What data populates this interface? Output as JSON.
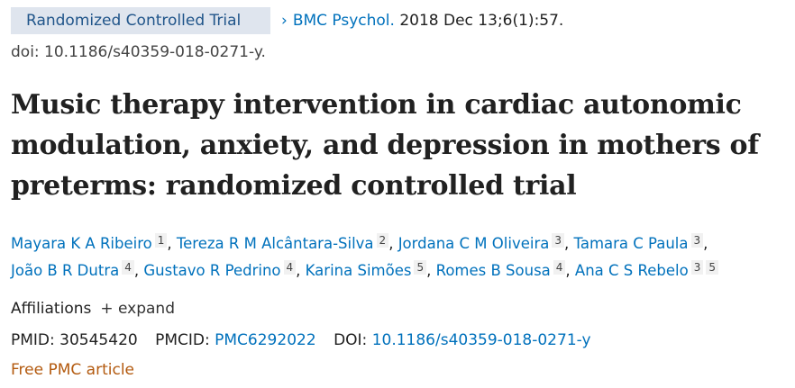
{
  "article_type": "Randomized Controlled Trial",
  "citation": {
    "journal": "BMC Psychol.",
    "date": " 2018 Dec 13;6(1):57.",
    "doi_line": "doi: 10.1186/s40359-018-0271-y."
  },
  "title": "Music therapy intervention in cardiac autonomic modulation, anxiety, and depression in mothers of preterms: randomized controlled trial",
  "authors": [
    {
      "name": "Mayara K A Ribeiro",
      "affils": [
        "1"
      ]
    },
    {
      "name": "Tereza R M Alcântara-Silva",
      "affils": [
        "2"
      ]
    },
    {
      "name": "Jordana C M Oliveira",
      "affils": [
        "3"
      ]
    },
    {
      "name": "Tamara C Paula",
      "affils": [
        "3"
      ]
    },
    {
      "name": "João B R Dutra",
      "affils": [
        "4"
      ]
    },
    {
      "name": "Gustavo R Pedrino",
      "affils": [
        "4"
      ]
    },
    {
      "name": "Karina Simões",
      "affils": [
        "5"
      ]
    },
    {
      "name": "Romes B Sousa",
      "affils": [
        "4"
      ]
    },
    {
      "name": "Ana C S Rebelo",
      "affils": [
        "3",
        "5"
      ]
    }
  ],
  "affiliations": {
    "label": "Affiliations",
    "expand": "+ expand"
  },
  "ids": {
    "pmid_label": "PMID:",
    "pmid": "30545420",
    "pmcid_label": "PMCID:",
    "pmcid": "PMC6292022",
    "doi_label": "DOI:",
    "doi": "10.1186/s40359-018-0271-y"
  },
  "free_label": "Free PMC article",
  "colors": {
    "link": "#0071bc",
    "badge_bg": "#dfe5ee",
    "free": "#b35a0f"
  }
}
